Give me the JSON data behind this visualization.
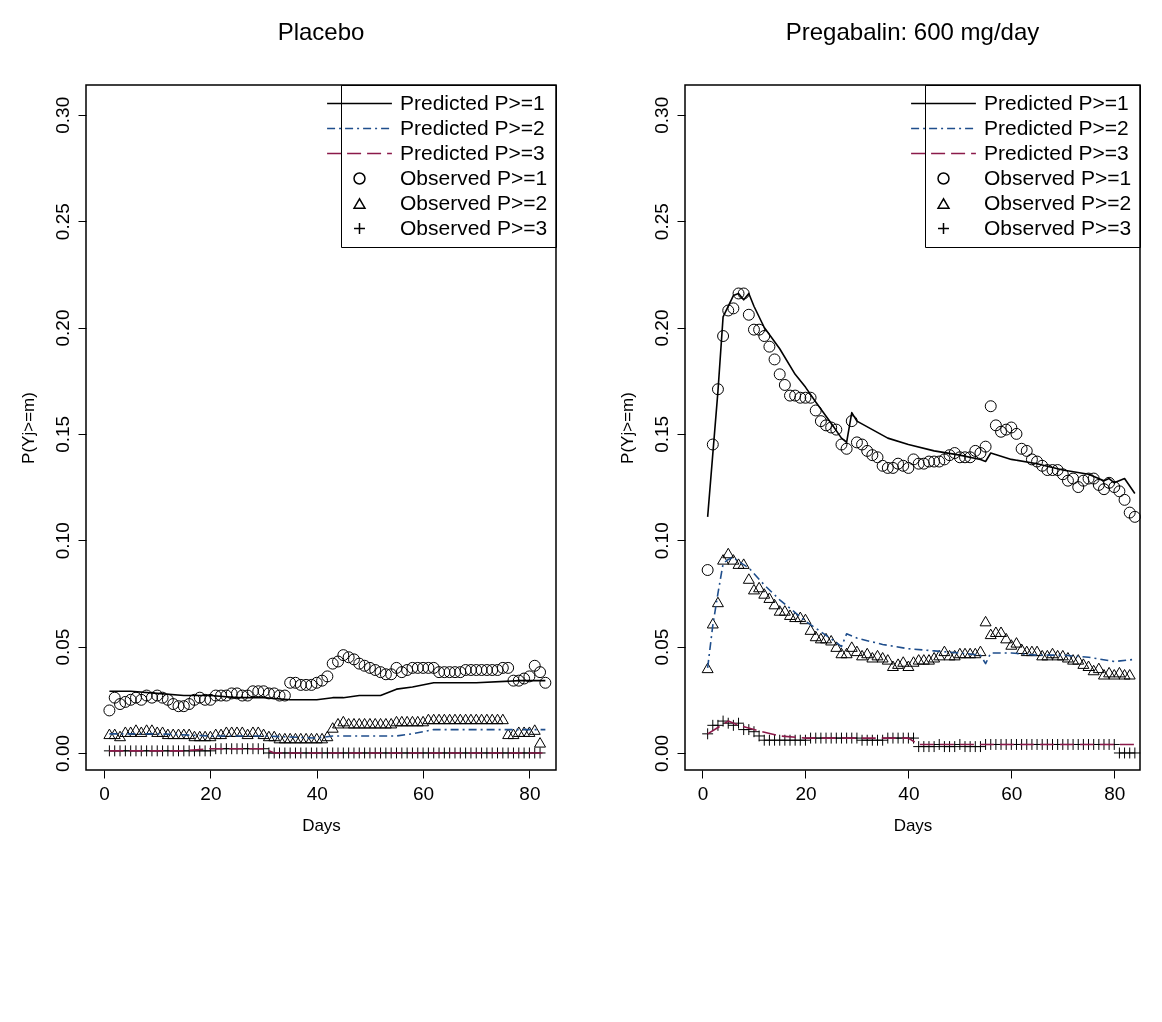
{
  "chart_data": [
    {
      "type": "line",
      "title": "Placebo",
      "xlabel": "Days",
      "ylabel": "P(Yj>=m)",
      "xlim": [
        -3.4,
        85
      ],
      "ylim": [
        -0.008,
        0.314
      ],
      "xticks": [
        0,
        20,
        40,
        60,
        80
      ],
      "yticks": [
        {
          "value": 0,
          "label": "0.00"
        },
        {
          "value": 0.05,
          "label": "0.05"
        },
        {
          "value": 0.1,
          "label": "0.10"
        },
        {
          "value": 0.15,
          "label": "0.15"
        },
        {
          "value": 0.2,
          "label": "0.20"
        },
        {
          "value": 0.25,
          "label": "0.25"
        },
        {
          "value": 0.3,
          "label": "0.30"
        }
      ],
      "legend": "top right",
      "series": [
        {
          "name": "Predicted P>=1",
          "line_style": "solid",
          "color": "#000000",
          "x": [
            1,
            5,
            10,
            15,
            20,
            25,
            30,
            35,
            40,
            43,
            45,
            48,
            52,
            55,
            58,
            62,
            70,
            78,
            83
          ],
          "values": [
            0.029,
            0.029,
            0.028,
            0.027,
            0.027,
            0.026,
            0.026,
            0.025,
            0.025,
            0.026,
            0.026,
            0.027,
            0.027,
            0.03,
            0.031,
            0.033,
            0.033,
            0.034,
            0.034
          ]
        },
        {
          "name": "Predicted P>=2",
          "line_style": "dashdot",
          "color": "#1f4e8c",
          "x": [
            1,
            10,
            20,
            30,
            40,
            43,
            55,
            58,
            62,
            83
          ],
          "values": [
            0.009,
            0.009,
            0.008,
            0.008,
            0.007,
            0.008,
            0.008,
            0.009,
            0.011,
            0.011
          ]
        },
        {
          "name": "Predicted P>=3",
          "line_style": "dashed",
          "color": "#8b1a4a",
          "x": [
            1,
            15,
            20,
            28,
            30,
            32,
            83
          ],
          "values": [
            0.001,
            0.001,
            0.002,
            0.002,
            0.002,
            0.0,
            0.0
          ]
        },
        {
          "name": "Observed P>=1",
          "type": "scatter",
          "marker": "circle",
          "color": "#000000",
          "x": [
            1,
            2,
            3,
            4,
            5,
            6,
            7,
            8,
            9,
            10,
            11,
            12,
            13,
            14,
            15,
            16,
            17,
            18,
            19,
            20,
            21,
            22,
            23,
            24,
            25,
            26,
            27,
            28,
            29,
            30,
            31,
            32,
            33,
            34,
            35,
            36,
            37,
            38,
            39,
            40,
            41,
            42,
            43,
            44,
            45,
            46,
            47,
            48,
            49,
            50,
            51,
            52,
            53,
            54,
            55,
            56,
            57,
            58,
            59,
            60,
            61,
            62,
            63,
            64,
            65,
            66,
            67,
            68,
            69,
            70,
            71,
            72,
            73,
            74,
            75,
            76,
            77,
            78,
            79,
            80,
            81,
            82,
            83
          ],
          "values": [
            0.02,
            0.026,
            0.023,
            0.024,
            0.025,
            0.026,
            0.025,
            0.027,
            0.026,
            0.027,
            0.026,
            0.025,
            0.023,
            0.022,
            0.022,
            0.023,
            0.025,
            0.026,
            0.025,
            0.025,
            0.027,
            0.027,
            0.027,
            0.028,
            0.028,
            0.027,
            0.027,
            0.029,
            0.029,
            0.029,
            0.028,
            0.028,
            0.027,
            0.027,
            0.033,
            0.033,
            0.032,
            0.032,
            0.032,
            0.033,
            0.034,
            0.036,
            0.042,
            0.043,
            0.046,
            0.045,
            0.044,
            0.042,
            0.041,
            0.04,
            0.039,
            0.038,
            0.037,
            0.037,
            0.04,
            0.038,
            0.039,
            0.04,
            0.04,
            0.04,
            0.04,
            0.04,
            0.038,
            0.038,
            0.038,
            0.038,
            0.038,
            0.039,
            0.039,
            0.039,
            0.039,
            0.039,
            0.039,
            0.039,
            0.04,
            0.04,
            0.034,
            0.034,
            0.035,
            0.036,
            0.041,
            0.038,
            0.033
          ]
        },
        {
          "name": "Observed P>=2",
          "type": "scatter",
          "marker": "triangle",
          "color": "#000000",
          "x": [
            1,
            2,
            3,
            4,
            5,
            6,
            7,
            8,
            9,
            10,
            11,
            12,
            13,
            14,
            15,
            16,
            17,
            18,
            19,
            20,
            21,
            22,
            23,
            24,
            25,
            26,
            27,
            28,
            29,
            30,
            31,
            32,
            33,
            34,
            35,
            36,
            37,
            38,
            39,
            40,
            41,
            42,
            43,
            44,
            45,
            46,
            47,
            48,
            49,
            50,
            51,
            52,
            53,
            54,
            55,
            56,
            57,
            58,
            59,
            60,
            61,
            62,
            63,
            64,
            65,
            66,
            67,
            68,
            69,
            70,
            71,
            72,
            73,
            74,
            75,
            76,
            77,
            78,
            79,
            80,
            81,
            82
          ],
          "values": [
            0.009,
            0.009,
            0.008,
            0.01,
            0.01,
            0.011,
            0.01,
            0.011,
            0.011,
            0.01,
            0.01,
            0.009,
            0.009,
            0.009,
            0.009,
            0.009,
            0.008,
            0.008,
            0.008,
            0.008,
            0.009,
            0.009,
            0.01,
            0.01,
            0.01,
            0.01,
            0.009,
            0.01,
            0.01,
            0.009,
            0.008,
            0.008,
            0.007,
            0.007,
            0.007,
            0.007,
            0.007,
            0.007,
            0.007,
            0.007,
            0.007,
            0.008,
            0.012,
            0.014,
            0.015,
            0.014,
            0.014,
            0.014,
            0.014,
            0.014,
            0.014,
            0.014,
            0.014,
            0.014,
            0.015,
            0.015,
            0.015,
            0.015,
            0.015,
            0.015,
            0.016,
            0.016,
            0.016,
            0.016,
            0.016,
            0.016,
            0.016,
            0.016,
            0.016,
            0.016,
            0.016,
            0.016,
            0.016,
            0.016,
            0.016,
            0.009,
            0.009,
            0.01,
            0.01,
            0.01,
            0.011,
            0.005
          ]
        },
        {
          "name": "Observed P>=3",
          "type": "scatter",
          "marker": "cross",
          "color": "#000000",
          "x": [
            1,
            2,
            3,
            4,
            5,
            6,
            7,
            8,
            9,
            10,
            11,
            12,
            13,
            14,
            15,
            16,
            17,
            18,
            19,
            20,
            21,
            22,
            23,
            24,
            25,
            26,
            27,
            28,
            29,
            30,
            31,
            32,
            33,
            34,
            35,
            36,
            37,
            38,
            39,
            40,
            41,
            42,
            43,
            44,
            45,
            46,
            47,
            48,
            49,
            50,
            51,
            52,
            53,
            54,
            55,
            56,
            57,
            58,
            59,
            60,
            61,
            62,
            63,
            64,
            65,
            66,
            67,
            68,
            69,
            70,
            71,
            72,
            73,
            74,
            75,
            76,
            77,
            78,
            79,
            80,
            81,
            82
          ],
          "values": [
            0.001,
            0.001,
            0.001,
            0.001,
            0.001,
            0.001,
            0.001,
            0.001,
            0.001,
            0.001,
            0.001,
            0.001,
            0.001,
            0.001,
            0.001,
            0.001,
            0.001,
            0.001,
            0.001,
            0.001,
            0.002,
            0.002,
            0.002,
            0.002,
            0.002,
            0.002,
            0.002,
            0.002,
            0.002,
            0.002,
            0.0,
            0.0,
            0.0,
            0.0,
            0.0,
            0.0,
            0.0,
            0.0,
            0.0,
            0.0,
            0.0,
            0.0,
            0.0,
            0.0,
            0.0,
            0.0,
            0.0,
            0.0,
            0.0,
            0.0,
            0.0,
            0.0,
            0.0,
            0.0,
            0.0,
            0.0,
            0.0,
            0.0,
            0.0,
            0.0,
            0.0,
            0.0,
            0.0,
            0.0,
            0.0,
            0.0,
            0.0,
            0.0,
            0.0,
            0.0,
            0.0,
            0.0,
            0.0,
            0.0,
            0.0,
            0.0,
            0.0,
            0.0,
            0.0,
            0.0,
            0.0,
            0.0
          ]
        }
      ]
    },
    {
      "type": "line",
      "title": "Pregabalin: 600 mg/day",
      "xlabel": "Days",
      "ylabel": "P(Yj>=m)",
      "xlim": [
        -3.4,
        85
      ],
      "ylim": [
        -0.008,
        0.314
      ],
      "xticks": [
        0,
        20,
        40,
        60,
        80
      ],
      "yticks": [
        {
          "value": 0,
          "label": "0.00"
        },
        {
          "value": 0.05,
          "label": "0.05"
        },
        {
          "value": 0.1,
          "label": "0.10"
        },
        {
          "value": 0.15,
          "label": "0.15"
        },
        {
          "value": 0.2,
          "label": "0.20"
        },
        {
          "value": 0.25,
          "label": "0.25"
        },
        {
          "value": 0.3,
          "label": "0.30"
        }
      ],
      "legend": "top right",
      "series": [
        {
          "name": "Predicted P>=1",
          "line_style": "solid",
          "color": "#000000",
          "x": [
            1,
            3,
            4,
            6,
            7,
            8,
            9,
            10,
            12,
            15,
            18,
            20,
            22,
            25,
            27,
            28,
            29,
            30,
            33,
            36,
            40,
            45,
            50,
            54,
            55,
            56,
            60,
            65,
            70,
            75,
            78,
            79,
            80,
            82,
            84
          ],
          "values": [
            0.111,
            0.17,
            0.205,
            0.215,
            0.216,
            0.213,
            0.216,
            0.21,
            0.2,
            0.19,
            0.178,
            0.172,
            0.165,
            0.155,
            0.148,
            0.146,
            0.16,
            0.156,
            0.152,
            0.148,
            0.145,
            0.142,
            0.14,
            0.138,
            0.137,
            0.141,
            0.138,
            0.136,
            0.133,
            0.131,
            0.128,
            0.129,
            0.127,
            0.129,
            0.122
          ]
        },
        {
          "name": "Predicted P>=2",
          "line_style": "dashdot",
          "color": "#1f4e8c",
          "x": [
            1,
            2,
            3,
            4,
            5,
            6,
            7,
            9,
            12,
            15,
            18,
            20,
            23,
            26,
            27,
            28,
            30,
            35,
            40,
            45,
            50,
            54,
            55,
            56,
            60,
            65,
            70,
            75,
            80,
            84
          ],
          "values": [
            0.04,
            0.06,
            0.075,
            0.089,
            0.091,
            0.092,
            0.09,
            0.087,
            0.079,
            0.072,
            0.066,
            0.062,
            0.057,
            0.052,
            0.05,
            0.056,
            0.054,
            0.051,
            0.049,
            0.048,
            0.047,
            0.046,
            0.042,
            0.047,
            0.047,
            0.046,
            0.046,
            0.045,
            0.043,
            0.044
          ]
        },
        {
          "name": "Predicted P>=3",
          "line_style": "dashed",
          "color": "#8b1a4a",
          "x": [
            1,
            3,
            5,
            7,
            10,
            15,
            20,
            30,
            40,
            42,
            55,
            60,
            80,
            84
          ],
          "values": [
            0.009,
            0.012,
            0.015,
            0.013,
            0.011,
            0.008,
            0.007,
            0.007,
            0.007,
            0.004,
            0.004,
            0.004,
            0.004,
            0.004
          ]
        },
        {
          "name": "Observed P>=1",
          "type": "scatter",
          "marker": "circle",
          "color": "#000000",
          "x": [
            1,
            2,
            3,
            4,
            5,
            6,
            7,
            8,
            9,
            10,
            11,
            12,
            13,
            14,
            15,
            16,
            17,
            18,
            19,
            20,
            21,
            22,
            23,
            24,
            25,
            26,
            27,
            28,
            29,
            30,
            31,
            32,
            33,
            34,
            35,
            36,
            37,
            38,
            39,
            40,
            41,
            42,
            43,
            44,
            45,
            46,
            47,
            48,
            49,
            50,
            51,
            52,
            53,
            54,
            55,
            56,
            57,
            58,
            59,
            60,
            61,
            62,
            63,
            64,
            65,
            66,
            67,
            68,
            69,
            70,
            71,
            72,
            73,
            74,
            75,
            76,
            77,
            78,
            79,
            80,
            81,
            82,
            83,
            84
          ],
          "values": [
            0.086,
            0.145,
            0.171,
            0.196,
            0.208,
            0.209,
            0.216,
            0.216,
            0.206,
            0.199,
            0.199,
            0.196,
            0.191,
            0.185,
            0.178,
            0.173,
            0.168,
            0.168,
            0.167,
            0.167,
            0.167,
            0.161,
            0.156,
            0.154,
            0.153,
            0.152,
            0.145,
            0.143,
            0.156,
            0.146,
            0.145,
            0.142,
            0.14,
            0.139,
            0.135,
            0.134,
            0.134,
            0.136,
            0.135,
            0.134,
            0.138,
            0.136,
            0.136,
            0.137,
            0.137,
            0.137,
            0.138,
            0.14,
            0.141,
            0.139,
            0.139,
            0.139,
            0.142,
            0.141,
            0.144,
            0.163,
            0.154,
            0.151,
            0.152,
            0.153,
            0.15,
            0.143,
            0.142,
            0.138,
            0.137,
            0.135,
            0.133,
            0.133,
            0.133,
            0.131,
            0.128,
            0.129,
            0.125,
            0.128,
            0.129,
            0.129,
            0.126,
            0.124,
            0.127,
            0.125,
            0.123,
            0.119,
            0.113,
            0.111
          ]
        },
        {
          "name": "Observed P>=2",
          "type": "scatter",
          "marker": "triangle",
          "color": "#000000",
          "x": [
            1,
            2,
            3,
            4,
            5,
            6,
            7,
            8,
            9,
            10,
            11,
            12,
            13,
            14,
            15,
            16,
            17,
            18,
            19,
            20,
            21,
            22,
            23,
            24,
            25,
            26,
            27,
            28,
            29,
            30,
            31,
            32,
            33,
            34,
            35,
            36,
            37,
            38,
            39,
            40,
            41,
            42,
            43,
            44,
            45,
            46,
            47,
            48,
            49,
            50,
            51,
            52,
            53,
            54,
            55,
            56,
            57,
            58,
            59,
            60,
            61,
            62,
            63,
            64,
            65,
            66,
            67,
            68,
            69,
            70,
            71,
            72,
            73,
            74,
            75,
            76,
            77,
            78,
            79,
            80,
            81,
            82,
            83
          ],
          "values": [
            0.04,
            0.061,
            0.071,
            0.091,
            0.094,
            0.091,
            0.089,
            0.089,
            0.082,
            0.077,
            0.078,
            0.075,
            0.073,
            0.07,
            0.067,
            0.067,
            0.065,
            0.064,
            0.064,
            0.063,
            0.058,
            0.055,
            0.054,
            0.054,
            0.053,
            0.05,
            0.047,
            0.047,
            0.05,
            0.048,
            0.046,
            0.047,
            0.045,
            0.046,
            0.045,
            0.044,
            0.041,
            0.042,
            0.043,
            0.041,
            0.043,
            0.044,
            0.044,
            0.044,
            0.045,
            0.046,
            0.048,
            0.046,
            0.046,
            0.047,
            0.047,
            0.047,
            0.047,
            0.048,
            0.062,
            0.056,
            0.057,
            0.057,
            0.054,
            0.051,
            0.052,
            0.049,
            0.048,
            0.048,
            0.048,
            0.046,
            0.046,
            0.047,
            0.046,
            0.046,
            0.045,
            0.044,
            0.044,
            0.042,
            0.041,
            0.039,
            0.04,
            0.037,
            0.038,
            0.037,
            0.038,
            0.037,
            0.037
          ]
        },
        {
          "name": "Observed P>=3",
          "type": "scatter",
          "marker": "cross",
          "color": "#000000",
          "x": [
            1,
            2,
            3,
            4,
            5,
            6,
            7,
            8,
            9,
            10,
            11,
            12,
            13,
            14,
            15,
            16,
            17,
            18,
            19,
            20,
            21,
            22,
            23,
            24,
            25,
            26,
            27,
            28,
            29,
            30,
            31,
            32,
            33,
            34,
            35,
            36,
            37,
            38,
            39,
            40,
            41,
            42,
            43,
            44,
            45,
            46,
            47,
            48,
            49,
            50,
            51,
            52,
            53,
            54,
            55,
            56,
            57,
            58,
            59,
            60,
            61,
            62,
            63,
            64,
            65,
            66,
            67,
            68,
            69,
            70,
            71,
            72,
            73,
            74,
            75,
            76,
            77,
            78,
            79,
            80,
            81,
            82,
            83,
            84
          ],
          "values": [
            0.009,
            0.013,
            0.013,
            0.015,
            0.014,
            0.013,
            0.014,
            0.011,
            0.011,
            0.01,
            0.008,
            0.006,
            0.006,
            0.006,
            0.006,
            0.006,
            0.006,
            0.006,
            0.006,
            0.006,
            0.007,
            0.007,
            0.007,
            0.007,
            0.007,
            0.007,
            0.007,
            0.007,
            0.007,
            0.007,
            0.006,
            0.006,
            0.006,
            0.006,
            0.006,
            0.007,
            0.007,
            0.007,
            0.007,
            0.007,
            0.007,
            0.003,
            0.003,
            0.003,
            0.003,
            0.004,
            0.003,
            0.003,
            0.003,
            0.004,
            0.003,
            0.003,
            0.003,
            0.003,
            0.004,
            0.004,
            0.004,
            0.004,
            0.004,
            0.004,
            0.004,
            0.004,
            0.004,
            0.004,
            0.004,
            0.004,
            0.004,
            0.004,
            0.004,
            0.004,
            0.004,
            0.004,
            0.004,
            0.004,
            0.004,
            0.004,
            0.004,
            0.004,
            0.004,
            0.004,
            0.0,
            0.0,
            0.0,
            0.0
          ]
        }
      ]
    }
  ]
}
